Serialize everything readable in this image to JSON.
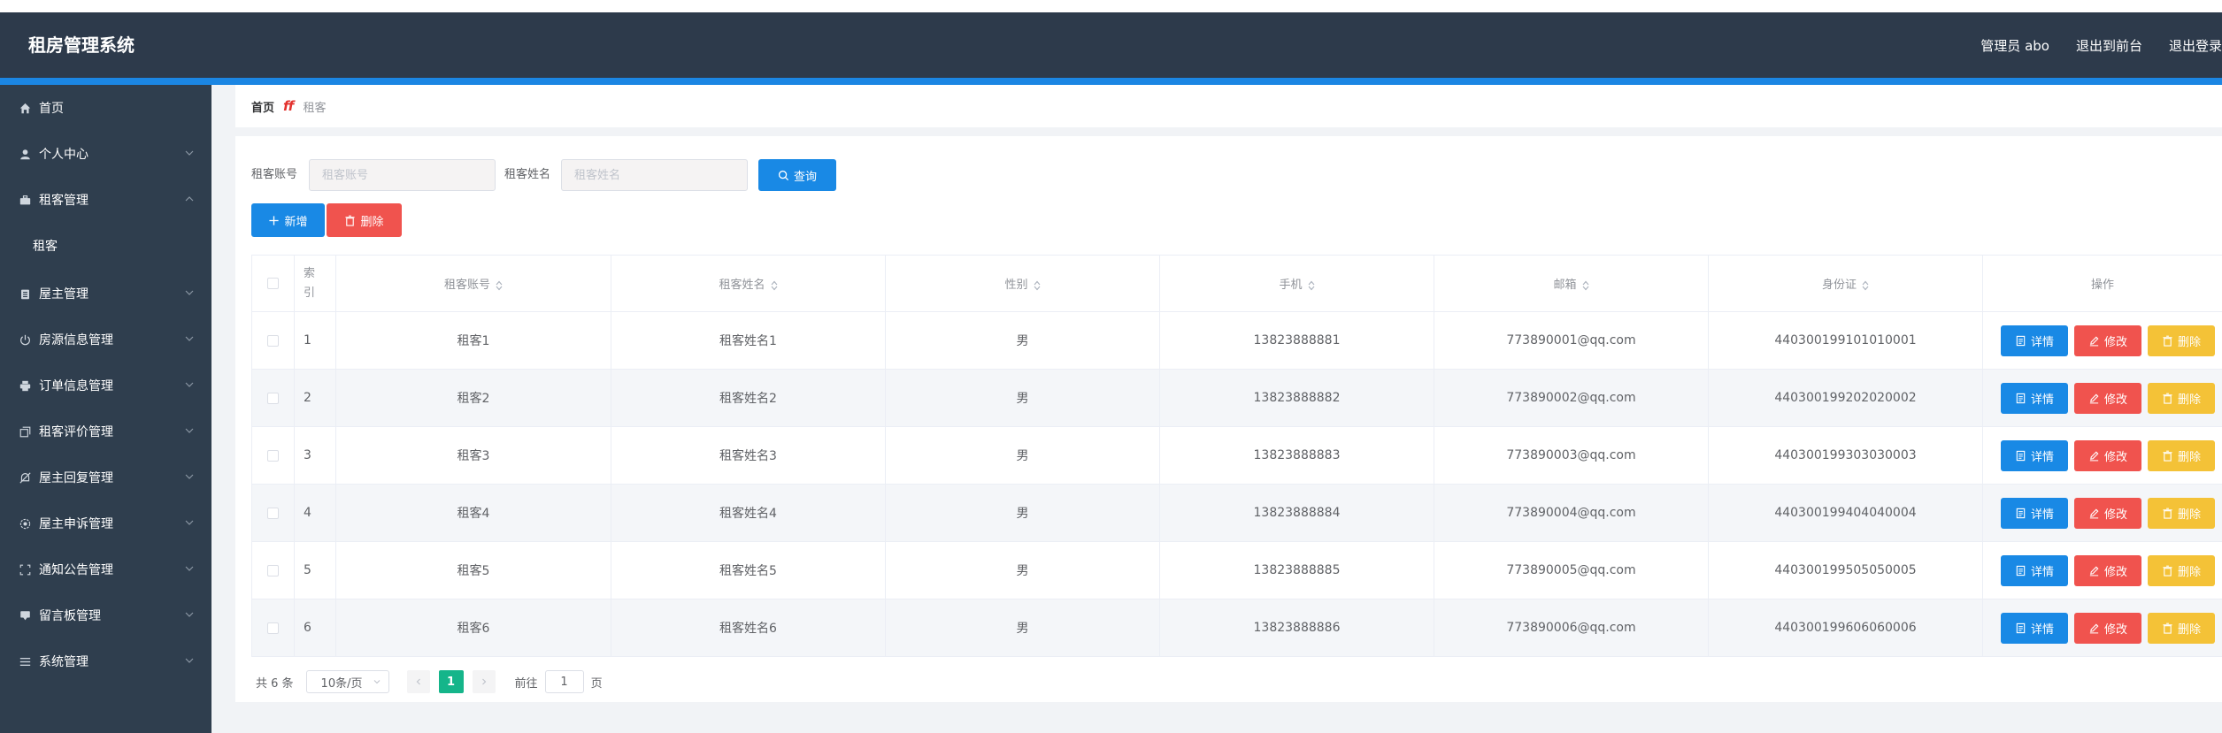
{
  "header": {
    "title": "租房管理系统",
    "admin": "管理员 abo",
    "front": "退出到前台",
    "logout": "退出登录"
  },
  "sidebar": {
    "items": [
      {
        "label": "首页",
        "icon": "home-icon"
      },
      {
        "label": "个人中心",
        "icon": "user-icon"
      },
      {
        "label": "租客管理",
        "icon": "briefcase-icon"
      },
      {
        "label": "租客",
        "icon": ""
      },
      {
        "label": "屋主管理",
        "icon": "clipboard-icon"
      },
      {
        "label": "房源信息管理",
        "icon": "power-icon"
      },
      {
        "label": "订单信息管理",
        "icon": "printer-icon"
      },
      {
        "label": "租客评价管理",
        "icon": "copy-icon"
      },
      {
        "label": "屋主回复管理",
        "icon": "bell-off-icon"
      },
      {
        "label": "屋主申诉管理",
        "icon": "help-icon"
      },
      {
        "label": "通知公告管理",
        "icon": "fullscreen-icon"
      },
      {
        "label": "留言板管理",
        "icon": "message-icon"
      },
      {
        "label": "系统管理",
        "icon": "menu-icon"
      }
    ]
  },
  "breadcrumb": {
    "home": "首页",
    "separator": "ff",
    "current": "租客"
  },
  "search": {
    "account_label": "租客账号",
    "account_placeholder": "租客账号",
    "name_label": "租客姓名",
    "name_placeholder": "租客姓名",
    "query": "查询"
  },
  "toolbar": {
    "add": "新增",
    "delete": "删除"
  },
  "table": {
    "headers": [
      "索引",
      "租客账号",
      "租客姓名",
      "性别",
      "手机",
      "邮箱",
      "身份证",
      "操作"
    ],
    "actions": {
      "detail": "详情",
      "edit": "修改",
      "delete": "删除"
    },
    "rows": [
      [
        "1",
        "租客1",
        "租客姓名1",
        "男",
        "13823888881",
        "773890001@qq.com",
        "440300199101010001"
      ],
      [
        "2",
        "租客2",
        "租客姓名2",
        "男",
        "13823888882",
        "773890002@qq.com",
        "440300199202020002"
      ],
      [
        "3",
        "租客3",
        "租客姓名3",
        "男",
        "13823888883",
        "773890003@qq.com",
        "440300199303030003"
      ],
      [
        "4",
        "租客4",
        "租客姓名4",
        "男",
        "13823888884",
        "773890004@qq.com",
        "440300199404040004"
      ],
      [
        "5",
        "租客5",
        "租客姓名5",
        "男",
        "13823888885",
        "773890005@qq.com",
        "440300199505050005"
      ],
      [
        "6",
        "租客6",
        "租客姓名6",
        "男",
        "13823888886",
        "773890006@qq.com",
        "440300199606060006"
      ]
    ]
  },
  "pagination": {
    "total": "共 6 条",
    "page_size": "10条/页",
    "current": "1",
    "goto_prefix": "前往",
    "goto_value": "1",
    "goto_suffix": "页"
  },
  "colors": {
    "topbar": "#2d3a4b",
    "accent": "#1b86e3",
    "sidebar": "#2f3e4e",
    "primary": "#1989e5",
    "danger": "#f0534e",
    "warning": "#f4c237",
    "page_active": "#15b58a"
  }
}
